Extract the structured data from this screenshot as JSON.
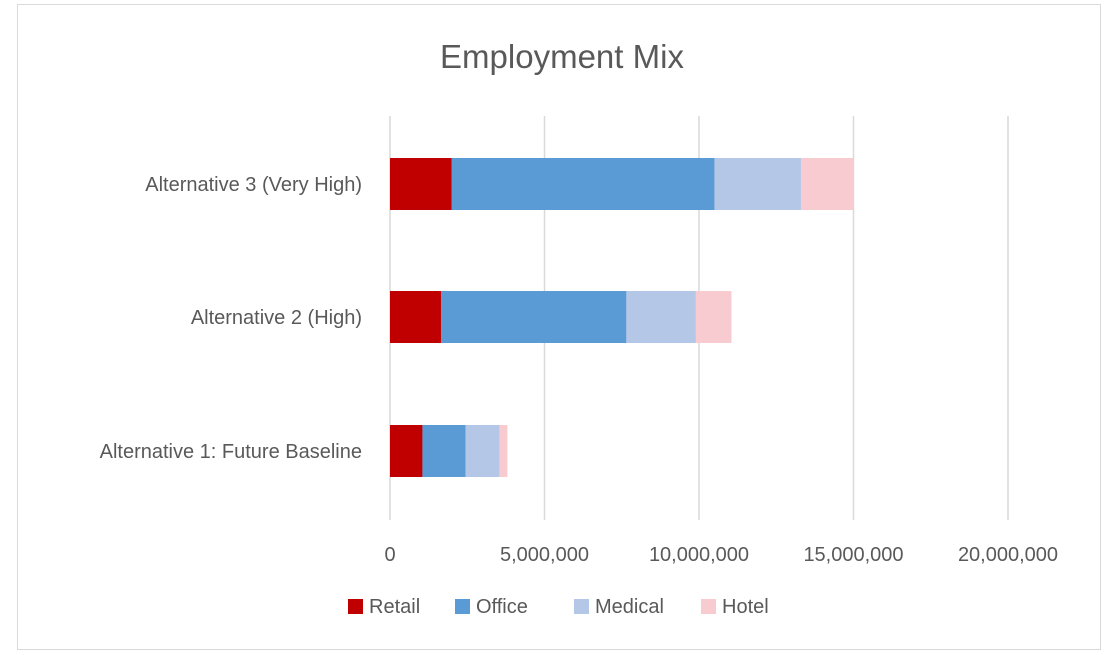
{
  "chart_data": {
    "type": "bar",
    "orientation": "horizontal",
    "stacked": true,
    "title": "Employment Mix",
    "categories": [
      "Alternative 3 (Very High)",
      "Alternative 2 (High)",
      "Alternative 1: Future Baseline"
    ],
    "series": [
      {
        "name": "Retail",
        "color": "#c00000",
        "values": [
          2000000,
          1650000,
          1050000
        ]
      },
      {
        "name": "Office",
        "color": "#5b9bd5",
        "values": [
          8500000,
          6000000,
          1400000
        ]
      },
      {
        "name": "Medical",
        "color": "#b4c7e7",
        "values": [
          2800000,
          2250000,
          1100000
        ]
      },
      {
        "name": "Hotel",
        "color": "#f8cbd1",
        "values": [
          1700000,
          1150000,
          250000
        ]
      }
    ],
    "xlim": [
      0,
      20000000
    ],
    "xticks": [
      0,
      5000000,
      10000000,
      15000000,
      20000000
    ],
    "xtick_labels": [
      "0",
      "5,000,000",
      "10,000,000",
      "15,000,000",
      "20,000,000"
    ],
    "gridlines": "vertical",
    "legend_position": "bottom"
  }
}
